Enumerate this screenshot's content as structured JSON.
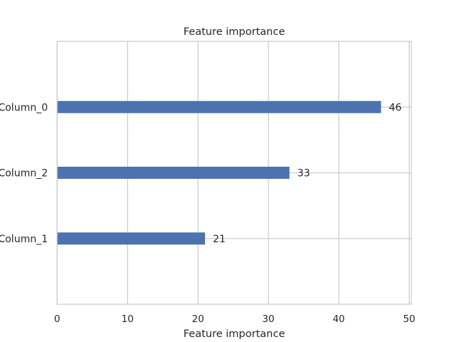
{
  "chart_data": {
    "type": "bar",
    "orientation": "horizontal",
    "title": "Feature importance",
    "xlabel": "Feature importance",
    "ylabel": "",
    "categories": [
      "Column_0",
      "Column_2",
      "Column_1"
    ],
    "values": [
      46,
      33,
      21
    ],
    "data_labels": [
      "46",
      "33",
      "21"
    ],
    "xlim": [
      0,
      50.3
    ],
    "xticks": [
      0,
      10,
      20,
      30,
      40,
      50
    ],
    "xtick_labels": [
      "0",
      "10",
      "20",
      "30",
      "40",
      "50"
    ],
    "grid": true,
    "bar_color": "#4c72b0",
    "grid_color": "#cccccc"
  }
}
